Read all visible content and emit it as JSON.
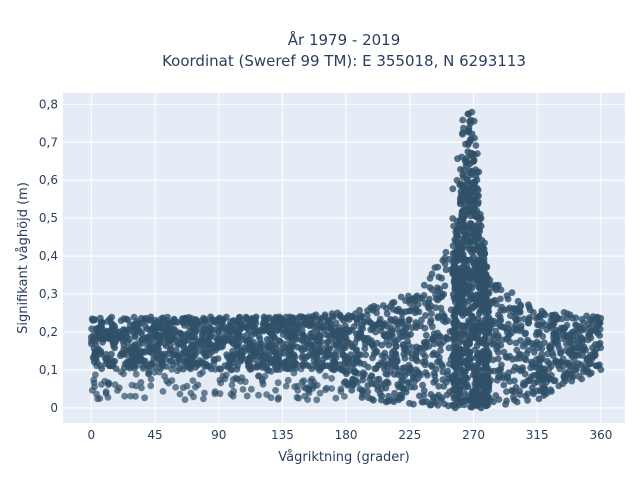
{
  "chart_data": {
    "type": "scatter",
    "title_line1": "År 1979 - 2019",
    "title_line2": "Koordinat (Sweref 99 TM): E 355018, N 6293113",
    "xlabel": "Vågriktning (grader)",
    "ylabel": "Signifikant våghöjd (m)",
    "xlim": [
      -20,
      377
    ],
    "ylim": [
      -0.04,
      0.83
    ],
    "x_ticks": [
      0,
      45,
      90,
      135,
      180,
      225,
      270,
      315,
      360
    ],
    "x_tick_labels": [
      "0",
      "45",
      "90",
      "135",
      "180",
      "225",
      "270",
      "315",
      "360"
    ],
    "y_ticks": [
      0,
      0.1,
      0.2,
      0.3,
      0.4,
      0.5,
      0.6,
      0.7,
      0.8
    ],
    "y_tick_labels": [
      "0",
      "0,1",
      "0,2",
      "0,3",
      "0,4",
      "0,5",
      "0,6",
      "0,7",
      "0,8"
    ],
    "grid": true,
    "marker_color": "#2f5069",
    "plot_background": "#e5ecf6",
    "series_shape": [
      {
        "x": 0,
        "y_min": 0.1,
        "y_max": 0.24
      },
      {
        "x": 45,
        "y_min": 0.1,
        "y_max": 0.24
      },
      {
        "x": 90,
        "y_min": 0.1,
        "y_max": 0.24
      },
      {
        "x": 135,
        "y_min": 0.1,
        "y_max": 0.24
      },
      {
        "x": 170,
        "y_min": 0.1,
        "y_max": 0.25
      },
      {
        "x": 190,
        "y_min": 0.02,
        "y_max": 0.26
      },
      {
        "x": 225,
        "y_min": 0.01,
        "y_max": 0.3
      },
      {
        "x": 250,
        "y_min": 0.0,
        "y_max": 0.4
      },
      {
        "x": 262,
        "y_min": 0.0,
        "y_max": 0.8
      },
      {
        "x": 270,
        "y_min": 0.0,
        "y_max": 0.8
      },
      {
        "x": 280,
        "y_min": 0.0,
        "y_max": 0.35
      },
      {
        "x": 315,
        "y_min": 0.02,
        "y_max": 0.26
      },
      {
        "x": 360,
        "y_min": 0.1,
        "y_max": 0.24
      }
    ]
  }
}
